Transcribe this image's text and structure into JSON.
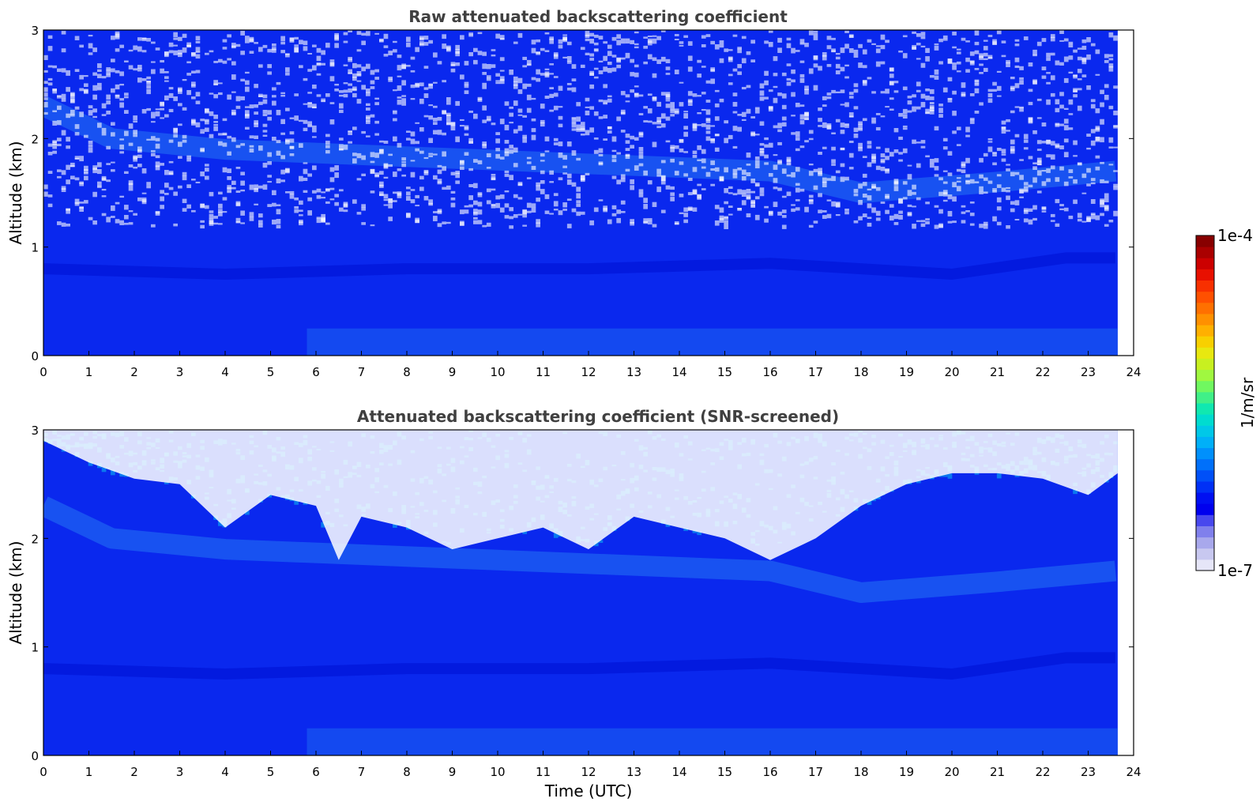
{
  "chart_data": [
    {
      "type": "heatmap",
      "title": "Raw attenuated backscattering coefficient",
      "xlabel": "",
      "ylabel": "Altitude (km)",
      "xlim": [
        0,
        24
      ],
      "ylim": [
        0,
        3
      ],
      "x_ticks": [
        "0",
        "1",
        "2",
        "3",
        "4",
        "5",
        "6",
        "7",
        "8",
        "9",
        "10",
        "11",
        "12",
        "13",
        "14",
        "15",
        "16",
        "17",
        "18",
        "19",
        "20",
        "21",
        "22",
        "23",
        "24"
      ],
      "y_ticks": [
        "0",
        "1",
        "2",
        "3"
      ],
      "data_extent_x": [
        0,
        23.65
      ],
      "screened": false,
      "features": [
        {
          "kind": "boundary_layer_top",
          "points": [
            [
              0,
              0.8
            ],
            [
              4,
              0.75
            ],
            [
              8,
              0.8
            ],
            [
              12,
              0.8
            ],
            [
              16,
              0.85
            ],
            [
              20,
              0.75
            ],
            [
              22.5,
              0.9
            ],
            [
              23.6,
              0.9
            ]
          ]
        },
        {
          "kind": "aerosol_layer",
          "points": [
            [
              0,
              2.3
            ],
            [
              1.5,
              2.0
            ],
            [
              4,
              1.9
            ],
            [
              10,
              1.8
            ],
            [
              16,
              1.7
            ],
            [
              18,
              1.5
            ],
            [
              21,
              1.6
            ],
            [
              23.6,
              1.7
            ]
          ]
        }
      ]
    },
    {
      "type": "heatmap",
      "title": "Attenuated backscattering coefficient (SNR-screened)",
      "xlabel": "Time (UTC)",
      "ylabel": "Altitude (km)",
      "xlim": [
        0,
        24
      ],
      "ylim": [
        0,
        3
      ],
      "x_ticks": [
        "0",
        "1",
        "2",
        "3",
        "4",
        "5",
        "6",
        "7",
        "8",
        "9",
        "10",
        "11",
        "12",
        "13",
        "14",
        "15",
        "16",
        "17",
        "18",
        "19",
        "20",
        "21",
        "22",
        "23",
        "24"
      ],
      "y_ticks": [
        "0",
        "1",
        "2",
        "3"
      ],
      "data_extent_x": [
        0,
        23.65
      ],
      "screened": true,
      "screen_top_km": [
        [
          0,
          2.9
        ],
        [
          1,
          2.7
        ],
        [
          2,
          2.55
        ],
        [
          3,
          2.5
        ],
        [
          4,
          2.1
        ],
        [
          5,
          2.4
        ],
        [
          6,
          2.3
        ],
        [
          6.5,
          1.8
        ],
        [
          7,
          2.2
        ],
        [
          8,
          2.1
        ],
        [
          9,
          1.9
        ],
        [
          10,
          2.0
        ],
        [
          11,
          2.1
        ],
        [
          12,
          1.9
        ],
        [
          13,
          2.2
        ],
        [
          14,
          2.1
        ],
        [
          15,
          2.0
        ],
        [
          16,
          1.8
        ],
        [
          17,
          2.0
        ],
        [
          18,
          2.3
        ],
        [
          19,
          2.5
        ],
        [
          20,
          2.6
        ],
        [
          21,
          2.6
        ],
        [
          22,
          2.55
        ],
        [
          23,
          2.4
        ],
        [
          23.65,
          2.6
        ]
      ]
    }
  ],
  "colorbar": {
    "label": "1/m/sr",
    "min_label": "1e-7",
    "max_label": "1e-4",
    "colors": [
      "#e6e6f8",
      "#c8c8f0",
      "#a8a8ec",
      "#8080ec",
      "#4848ee",
      "#0000ee",
      "#0010f2",
      "#0030f6",
      "#0050f8",
      "#0070fa",
      "#0090fc",
      "#00b0f8",
      "#00c8e8",
      "#00dcd0",
      "#10e8b0",
      "#40f088",
      "#70f860",
      "#a0f840",
      "#c8f020",
      "#e8e810",
      "#f8d000",
      "#ffb000",
      "#ff9000",
      "#ff7000",
      "#ff5000",
      "#f83000",
      "#e81000",
      "#cc0000",
      "#aa0000",
      "#880000"
    ]
  },
  "colors": {
    "background_blue": "#0a28ee",
    "boundary_dark": "#0014d8",
    "aerosol_light": "#1e64f2",
    "noise_white": "#ffffff",
    "title_gray": "#404040"
  }
}
